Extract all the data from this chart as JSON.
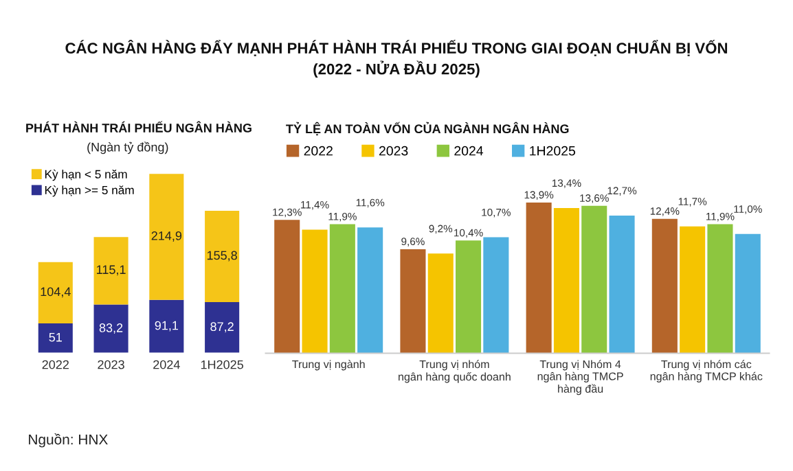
{
  "chart_data": [
    {
      "type": "other",
      "title": "CÁC NGÂN HÀNG ĐẨY MẠNH PHÁT HÀNH TRÁI PHIẾU TRONG GIAI ĐOẠN CHUẨN BỊ VỐN\n(2022 - NỬA ĐẦU 2025)",
      "annotations": [
        "Nguồn: HNX"
      ]
    },
    {
      "type": "bar",
      "title": "PHÁT HÀNH TRÁI PHIẾU NGÂN HÀNG",
      "subtitle": "(Ngàn tỷ đồng)",
      "categories": [
        "2022",
        "2023",
        "2024",
        "1H2025"
      ],
      "stacked": true,
      "legend": "top left",
      "data_labels": true,
      "tick_labels": "x",
      "series": [
        {
          "name": "Kỳ hạn >= 5 năm",
          "color": "#2e3192",
          "values": [
            51,
            83.2,
            91.1,
            87.2
          ],
          "value_labels": [
            "51",
            "83,2",
            "91,1",
            "87,2"
          ]
        },
        {
          "name": "Kỳ hạn < 5 năm",
          "color": "#f5c518",
          "values": [
            104.4,
            115.1,
            214.9,
            155.8
          ],
          "value_labels": [
            "104,4",
            "115,1",
            "214,9",
            "155,8"
          ]
        }
      ]
    },
    {
      "type": "bar",
      "title": "TỶ LỆ AN TOÀN VỐN CỦA NGÀNH NGÂN HÀNG",
      "categories": [
        "Trung vị ngành",
        "Trung vị nhóm\nngân hàng quốc doanh",
        "Trung vị Nhóm 4\nngân hàng TMCP\nhàng đầu",
        "Trung vị nhóm các\nngân hàng TMCP khác"
      ],
      "legend": "top",
      "data_labels": true,
      "tick_labels": "x",
      "series": [
        {
          "name": "2022",
          "color": "#b5652a",
          "values": [
            12.3,
            9.6,
            13.9,
            12.4
          ],
          "value_labels": [
            "12,3%",
            "9,6%",
            "13,9%",
            "12,4%"
          ]
        },
        {
          "name": "2023",
          "color": "#f5c400",
          "values": [
            11.4,
            9.2,
            13.4,
            11.7
          ],
          "value_labels": [
            "11,4%",
            "9,2%",
            "13,4%",
            "11,7%"
          ]
        },
        {
          "name": "2024",
          "color": "#8dc63f",
          "values": [
            11.9,
            10.4,
            13.6,
            11.9
          ],
          "value_labels": [
            "11,9%",
            "10,4%",
            "13,6%",
            "11,9%"
          ]
        },
        {
          "name": "1H2025",
          "color": "#4fb0e0",
          "values": [
            11.6,
            10.7,
            12.7,
            11.0
          ],
          "value_labels": [
            "11,6%",
            "10,7%",
            "12,7%",
            "11,0%"
          ]
        }
      ]
    }
  ]
}
